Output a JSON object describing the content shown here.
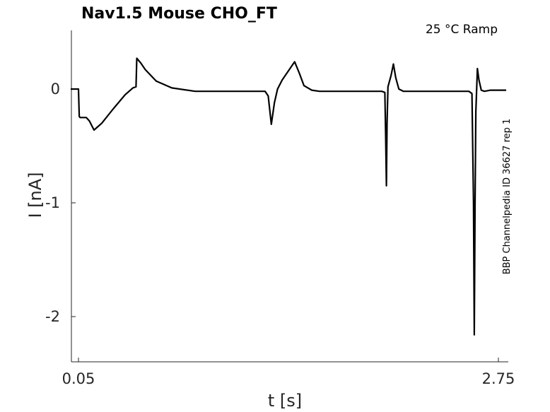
{
  "chart_data": {
    "type": "line",
    "title": "Nav1.5  Mouse  CHO_FT",
    "condition_label": "25 °C  Ramp",
    "side_label": "BBP Channelpedia ID 36627 rep 1",
    "xlabel": "t [s]",
    "ylabel": "I [nA]",
    "xlim": [
      0.0,
      2.8
    ],
    "ylim": [
      -2.4,
      0.5
    ],
    "x_ticks": [
      0.05,
      2.75
    ],
    "x_tick_labels": [
      "0.05",
      "2.75"
    ],
    "y_ticks": [
      -2,
      -1,
      0
    ],
    "y_tick_labels": [
      "-2",
      "-1",
      "0"
    ],
    "grid": false,
    "legend": "none",
    "line_color": "#000000",
    "series": [
      {
        "x": [
          0.0,
          0.05,
          0.055,
          0.06,
          0.1,
          0.12,
          0.15,
          0.2,
          0.27,
          0.35,
          0.4,
          0.42,
          0.425,
          0.45,
          0.48,
          0.55,
          0.65,
          0.8,
          1.0,
          1.15,
          1.25,
          1.27,
          1.29,
          1.31,
          1.33,
          1.36,
          1.4,
          1.44,
          1.47,
          1.5,
          1.55,
          1.6,
          1.75,
          2.0,
          2.02,
          2.025,
          2.03,
          2.034,
          2.04,
          2.06,
          2.075,
          2.09,
          2.11,
          2.14,
          2.2,
          2.4,
          2.56,
          2.58,
          2.59,
          2.595,
          2.6,
          2.605,
          2.615,
          2.625,
          2.64,
          2.66,
          2.7,
          2.75,
          2.8
        ],
        "y": [
          0.0,
          0.0,
          -0.24,
          -0.25,
          -0.25,
          -0.28,
          -0.36,
          -0.3,
          -0.18,
          -0.05,
          0.01,
          0.02,
          0.27,
          0.23,
          0.17,
          0.07,
          0.01,
          -0.02,
          -0.02,
          -0.02,
          -0.02,
          -0.06,
          -0.31,
          -0.12,
          0.0,
          0.08,
          0.16,
          0.24,
          0.14,
          0.03,
          -0.01,
          -0.02,
          -0.02,
          -0.02,
          -0.03,
          -0.4,
          -0.85,
          -0.3,
          0.02,
          0.12,
          0.22,
          0.1,
          0.0,
          -0.02,
          -0.02,
          -0.02,
          -0.02,
          -0.04,
          -1.0,
          -2.16,
          -1.0,
          -0.2,
          0.18,
          0.08,
          -0.01,
          -0.02,
          -0.01,
          -0.01,
          -0.01
        ]
      }
    ]
  }
}
